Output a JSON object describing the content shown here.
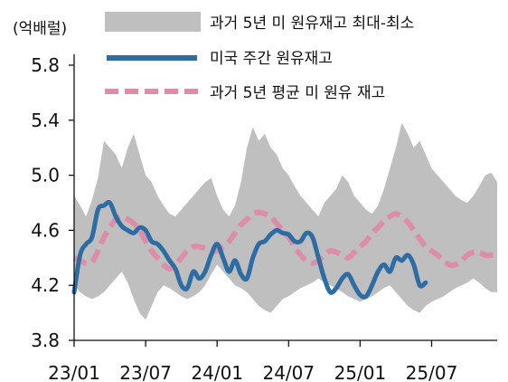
{
  "chart_data": {
    "type": "line",
    "unit_label": "(억배럴)",
    "yticks": [
      "5.8",
      "5.4",
      "5.0",
      "4.6",
      "4.2",
      "3.8"
    ],
    "ylim": [
      3.8,
      5.8
    ],
    "xticks": [
      "23/01",
      "23/07",
      "24/01",
      "24/07",
      "25/01",
      "25/07"
    ],
    "x_tick_months": [
      0,
      6,
      12,
      18,
      24,
      30
    ],
    "x_range_months": [
      0,
      35.5
    ],
    "legend_position": "top-right",
    "grid": false,
    "series": [
      {
        "name": "과거 5년 미 원유재고 최대-최소",
        "kind": "band",
        "color": "#bfbfbf",
        "x": [
          0,
          0.5,
          1,
          1.5,
          2,
          2.5,
          3,
          3.5,
          4,
          4.5,
          5,
          5.5,
          6,
          6.5,
          7,
          7.5,
          8,
          8.5,
          9,
          9.5,
          10,
          10.5,
          11,
          11.5,
          12,
          12.5,
          13,
          13.5,
          14,
          14.5,
          15,
          15.5,
          16,
          16.5,
          17,
          17.5,
          18,
          18.5,
          19,
          19.5,
          20,
          20.5,
          21,
          21.5,
          22,
          22.5,
          23,
          23.5,
          24,
          24.5,
          25,
          25.5,
          26,
          26.5,
          27,
          27.5,
          28,
          28.5,
          29,
          29.5,
          30,
          30.5,
          31,
          31.5,
          32,
          32.5,
          33,
          33.5,
          34,
          34.5,
          35,
          35.5
        ],
        "upper": [
          4.85,
          4.78,
          4.7,
          4.82,
          4.98,
          5.25,
          5.2,
          5.15,
          5.05,
          5.2,
          5.3,
          5.15,
          5.0,
          4.95,
          4.85,
          4.78,
          4.72,
          4.7,
          4.75,
          4.8,
          4.85,
          4.9,
          4.95,
          4.98,
          4.85,
          4.75,
          4.7,
          4.78,
          4.95,
          5.2,
          5.35,
          5.25,
          5.3,
          5.2,
          5.15,
          5.05,
          5.0,
          4.92,
          4.85,
          4.8,
          4.75,
          4.7,
          4.8,
          4.85,
          4.9,
          5.0,
          4.95,
          4.85,
          4.8,
          4.75,
          4.72,
          4.78,
          4.9,
          5.05,
          5.2,
          5.38,
          5.3,
          5.2,
          5.25,
          5.15,
          5.05,
          5.0,
          4.95,
          4.9,
          4.85,
          4.82,
          4.8,
          4.85,
          4.92,
          5.0,
          5.02,
          4.95
        ],
        "lower": [
          4.2,
          4.15,
          4.12,
          4.1,
          4.12,
          4.15,
          4.2,
          4.25,
          4.3,
          4.22,
          4.1,
          4.0,
          3.95,
          4.05,
          4.15,
          4.2,
          4.18,
          4.15,
          4.12,
          4.1,
          4.12,
          4.15,
          4.2,
          4.28,
          4.35,
          4.3,
          4.25,
          4.2,
          4.18,
          4.15,
          4.1,
          4.05,
          4.02,
          4.0,
          4.05,
          4.1,
          4.12,
          4.15,
          4.18,
          4.2,
          4.22,
          4.25,
          4.22,
          4.2,
          4.18,
          4.15,
          4.12,
          4.1,
          4.08,
          4.1,
          4.12,
          4.15,
          4.18,
          4.2,
          4.15,
          4.1,
          4.05,
          4.02,
          4.0,
          4.05,
          4.08,
          4.1,
          4.12,
          4.15,
          4.18,
          4.2,
          4.22,
          4.25,
          4.22,
          4.18,
          4.15,
          4.15
        ]
      },
      {
        "name": "미국 주간 원유재고",
        "kind": "line",
        "color": "#2e6ca4",
        "x": [
          0,
          0.5,
          1,
          1.5,
          2,
          2.5,
          3,
          3.5,
          4,
          4.5,
          5,
          5.5,
          6,
          6.5,
          7,
          7.5,
          8,
          8.5,
          9,
          9.5,
          10,
          10.5,
          11,
          11.5,
          12,
          12.5,
          13,
          13.5,
          14,
          14.5,
          15,
          15.5,
          16,
          16.5,
          17,
          17.5,
          18,
          18.5,
          19,
          19.5,
          20,
          20.5,
          21,
          21.5,
          22,
          22.5,
          23,
          23.5,
          24,
          24.5,
          25,
          25.5,
          26,
          26.5,
          27,
          27.5,
          28,
          28.5,
          29,
          29.5
        ],
        "values": [
          4.15,
          4.42,
          4.5,
          4.55,
          4.75,
          4.78,
          4.8,
          4.7,
          4.63,
          4.6,
          4.58,
          4.62,
          4.6,
          4.52,
          4.5,
          4.45,
          4.38,
          4.32,
          4.2,
          4.18,
          4.3,
          4.25,
          4.3,
          4.42,
          4.5,
          4.4,
          4.3,
          4.38,
          4.28,
          4.25,
          4.4,
          4.5,
          4.52,
          4.57,
          4.6,
          4.58,
          4.57,
          4.52,
          4.52,
          4.58,
          4.55,
          4.4,
          4.25,
          4.15,
          4.18,
          4.25,
          4.28,
          4.2,
          4.13,
          4.12,
          4.2,
          4.3,
          4.35,
          4.3,
          4.4,
          4.38,
          4.42,
          4.35,
          4.2,
          4.22
        ]
      },
      {
        "name": "과거 5년 평균 미 원유 재고",
        "kind": "dashed",
        "color": "#dd8ea6",
        "x": [
          0,
          0.5,
          1,
          1.5,
          2,
          2.5,
          3,
          3.5,
          4,
          4.5,
          5,
          5.5,
          6,
          6.5,
          7,
          7.5,
          8,
          8.5,
          9,
          9.5,
          10,
          10.5,
          11,
          11.5,
          12,
          12.5,
          13,
          13.5,
          14,
          14.5,
          15,
          15.5,
          16,
          16.5,
          17,
          17.5,
          18,
          18.5,
          19,
          19.5,
          20,
          20.5,
          21,
          21.5,
          22,
          22.5,
          23,
          23.5,
          24,
          24.5,
          25,
          25.5,
          26,
          26.5,
          27,
          27.5,
          28,
          28.5,
          29,
          29.5,
          30,
          30.5,
          31,
          31.5,
          32,
          32.5,
          33,
          33.5,
          34,
          34.5,
          35,
          35.5
        ],
        "values": [
          4.4,
          4.38,
          4.36,
          4.37,
          4.45,
          4.55,
          4.62,
          4.68,
          4.7,
          4.68,
          4.65,
          4.6,
          4.52,
          4.45,
          4.4,
          4.35,
          4.32,
          4.35,
          4.4,
          4.45,
          4.48,
          4.48,
          4.47,
          4.46,
          4.45,
          4.48,
          4.52,
          4.58,
          4.64,
          4.68,
          4.72,
          4.73,
          4.72,
          4.7,
          4.65,
          4.6,
          4.55,
          4.48,
          4.42,
          4.38,
          4.36,
          4.38,
          4.42,
          4.45,
          4.44,
          4.42,
          4.4,
          4.44,
          4.48,
          4.52,
          4.58,
          4.62,
          4.67,
          4.7,
          4.72,
          4.7,
          4.66,
          4.6,
          4.54,
          4.48,
          4.45,
          4.42,
          4.38,
          4.35,
          4.35,
          4.38,
          4.42,
          4.44,
          4.44,
          4.42,
          4.42,
          4.42
        ]
      }
    ]
  }
}
